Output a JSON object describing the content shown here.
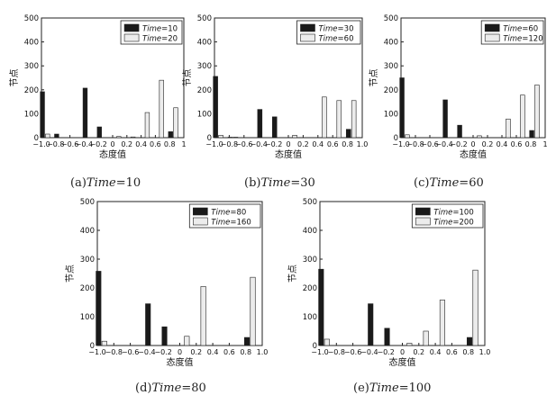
{
  "chart_data": [
    {
      "type": "bar",
      "id": "a",
      "caption_label": "(a)",
      "caption_time": "Time",
      "caption_value": "=10",
      "xlabel": "态度值",
      "ylabel": "节点",
      "ylim": [
        0,
        500
      ],
      "yticks": [
        0,
        100,
        200,
        300,
        400,
        500
      ],
      "xlim": [
        -1.0,
        1.0
      ],
      "xtick_values": [
        -1.0,
        -0.8,
        -0.6,
        -0.4,
        -0.2,
        0,
        0.2,
        0.4,
        0.6,
        0.8,
        1
      ],
      "xtick_labels": [
        "−1.0",
        "−0.8",
        "−0.6",
        "−0.4",
        "−0.2",
        "0",
        "0.2",
        "0.4",
        "0.6",
        "0.8",
        "1"
      ],
      "categories": [
        -0.95,
        -0.75,
        -0.55,
        -0.35,
        -0.15,
        0.05,
        0.25,
        0.45,
        0.65,
        0.85
      ],
      "series": [
        {
          "name": "Time",
          "suffix": "=10",
          "color": "#1a1a1a",
          "values": [
            192,
            15,
            0,
            207,
            45,
            0,
            0,
            0,
            0,
            25
          ]
        },
        {
          "name": "Time",
          "suffix": "=20",
          "color": "#ececec",
          "values": [
            15,
            0,
            0,
            0,
            0,
            5,
            3,
            105,
            240,
            125
          ]
        }
      ]
    },
    {
      "type": "bar",
      "id": "b",
      "caption_label": "(b)",
      "caption_time": "Time",
      "caption_value": "=30",
      "xlabel": "态度值",
      "ylabel": "节点",
      "ylim": [
        0,
        500
      ],
      "yticks": [
        0,
        100,
        200,
        300,
        400,
        500
      ],
      "xlim": [
        -1.0,
        1.0
      ],
      "xtick_values": [
        -1.0,
        -0.8,
        -0.6,
        -0.4,
        -0.2,
        0,
        0.2,
        0.4,
        0.6,
        0.8,
        1.0
      ],
      "xtick_labels": [
        "−1.0",
        "−0.8",
        "−0.6",
        "−0.4",
        "−0.2",
        "0",
        "0.2",
        "0.4",
        "0.6",
        "0.8",
        "1.0"
      ],
      "categories": [
        -0.95,
        -0.75,
        -0.55,
        -0.35,
        -0.15,
        0.05,
        0.25,
        0.45,
        0.65,
        0.85
      ],
      "series": [
        {
          "name": "Time",
          "suffix": "=30",
          "color": "#1a1a1a",
          "values": [
            256,
            2,
            0,
            118,
            87,
            0,
            0,
            0,
            0,
            35
          ]
        },
        {
          "name": "Time",
          "suffix": "=60",
          "color": "#ececec",
          "values": [
            10,
            2,
            0,
            0,
            0,
            10,
            0,
            170,
            155,
            155
          ]
        }
      ]
    },
    {
      "type": "bar",
      "id": "c",
      "caption_label": "(c)",
      "caption_time": "Time",
      "caption_value": "=60",
      "xlabel": "态度值",
      "ylabel": "节点",
      "ylim": [
        0,
        500
      ],
      "yticks": [
        0,
        100,
        200,
        300,
        400,
        500
      ],
      "xlim": [
        -1.0,
        1.0
      ],
      "xtick_values": [
        -1.0,
        -0.8,
        -0.6,
        -0.4,
        -0.2,
        0,
        0.2,
        0.4,
        0.6,
        0.8,
        1
      ],
      "xtick_labels": [
        "−1.0",
        "−0.8",
        "−0.6",
        "−0.4",
        "−0.2",
        "0",
        "0.2",
        "0.4",
        "0.6",
        "0.8",
        "1"
      ],
      "categories": [
        -0.95,
        -0.75,
        -0.55,
        -0.35,
        -0.15,
        0.05,
        0.25,
        0.45,
        0.65,
        0.85
      ],
      "series": [
        {
          "name": "Time",
          "suffix": "=60",
          "color": "#1a1a1a",
          "values": [
            250,
            0,
            0,
            158,
            52,
            0,
            0,
            0,
            0,
            30
          ]
        },
        {
          "name": "Time",
          "suffix": "=120",
          "color": "#ececec",
          "values": [
            12,
            0,
            0,
            0,
            0,
            8,
            0,
            78,
            178,
            220
          ]
        }
      ]
    },
    {
      "type": "bar",
      "id": "d",
      "caption_label": "(d)",
      "caption_time": "Time",
      "caption_value": "=80",
      "xlabel": "态度值",
      "ylabel": "节点",
      "ylim": [
        0,
        500
      ],
      "yticks": [
        0,
        100,
        200,
        300,
        400,
        500
      ],
      "xlim": [
        -1.0,
        1.0
      ],
      "xtick_values": [
        -1.0,
        -0.8,
        -0.6,
        -0.4,
        -0.2,
        0,
        0.2,
        0.4,
        0.6,
        0.8,
        1.0
      ],
      "xtick_labels": [
        "−1.0",
        "−0.8",
        "−0.6",
        "−0.4",
        "−0.2",
        "0",
        "0.2",
        "0.4",
        "0.6",
        "0.8",
        "1.0"
      ],
      "categories": [
        -0.95,
        -0.75,
        -0.55,
        -0.35,
        -0.15,
        0.05,
        0.25,
        0.45,
        0.65,
        0.85
      ],
      "series": [
        {
          "name": "Time",
          "suffix": "=80",
          "color": "#1a1a1a",
          "values": [
            258,
            0,
            0,
            145,
            65,
            0,
            0,
            0,
            0,
            28
          ]
        },
        {
          "name": "Time",
          "suffix": "=160",
          "color": "#ececec",
          "values": [
            15,
            0,
            0,
            0,
            0,
            32,
            205,
            0,
            0,
            237
          ]
        }
      ]
    },
    {
      "type": "bar",
      "id": "e",
      "caption_label": "(e)",
      "caption_time": "Time",
      "caption_value": "=100",
      "xlabel": "态度值",
      "ylabel": "节点",
      "ylim": [
        0,
        500
      ],
      "yticks": [
        0,
        100,
        200,
        300,
        400,
        500
      ],
      "xlim": [
        -1.0,
        1.0
      ],
      "xtick_values": [
        -1.0,
        -0.8,
        -0.6,
        -0.4,
        -0.2,
        0,
        0.2,
        0.4,
        0.6,
        0.8,
        1.0
      ],
      "xtick_labels": [
        "−1.0",
        "−0.8",
        "−0.6",
        "−0.4",
        "−0.2",
        "0",
        "0.2",
        "0.4",
        "0.6",
        "0.8",
        "1.0"
      ],
      "categories": [
        -0.95,
        -0.75,
        -0.55,
        -0.35,
        -0.15,
        0.05,
        0.25,
        0.45,
        0.65,
        0.85
      ],
      "series": [
        {
          "name": "Time",
          "suffix": "=100",
          "color": "#1a1a1a",
          "values": [
            265,
            0,
            0,
            145,
            60,
            0,
            0,
            0,
            0,
            28
          ]
        },
        {
          "name": "Time",
          "suffix": "=200",
          "color": "#ececec",
          "values": [
            22,
            0,
            0,
            0,
            0,
            8,
            50,
            158,
            0,
            262
          ]
        }
      ]
    }
  ]
}
